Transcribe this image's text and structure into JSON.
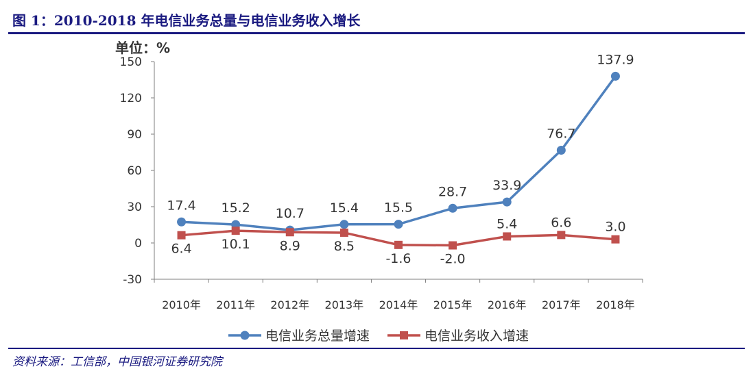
{
  "figure": {
    "title": "图 1：2010-2018 年电信业务总量与电信业务收入增长",
    "source": "资料来源：工信部，中国银河证券研究院"
  },
  "chart_data": {
    "type": "line",
    "unit_label": "单位：%",
    "categories": [
      "2010年",
      "2011年",
      "2012年",
      "2013年",
      "2014年",
      "2015年",
      "2016年",
      "2017年",
      "2018年"
    ],
    "y_ticks": [
      "150",
      "120",
      "90",
      "60",
      "30",
      "0",
      "-30"
    ],
    "ylim": [
      -30,
      150
    ],
    "grid": false,
    "legend_position": "bottom",
    "series": [
      {
        "name": "电信业务总量增速",
        "color": "#4f81bd",
        "marker": "circle",
        "values": [
          17.4,
          15.2,
          10.7,
          15.4,
          15.5,
          28.7,
          33.9,
          76.7,
          137.9
        ],
        "labels": [
          "17.4",
          "15.2",
          "10.7",
          "15.4",
          "15.5",
          "28.7",
          "33.9",
          "76.7",
          "137.9"
        ]
      },
      {
        "name": "电信业务收入增速",
        "color": "#c0504d",
        "marker": "square",
        "values": [
          6.4,
          10.1,
          8.9,
          8.5,
          -1.6,
          -2.0,
          5.4,
          6.6,
          3.0
        ],
        "labels": [
          "6.4",
          "10.1",
          "8.9",
          "8.5",
          "-1.6",
          "-2.0",
          "5.4",
          "6.6",
          "3.0"
        ]
      }
    ]
  }
}
